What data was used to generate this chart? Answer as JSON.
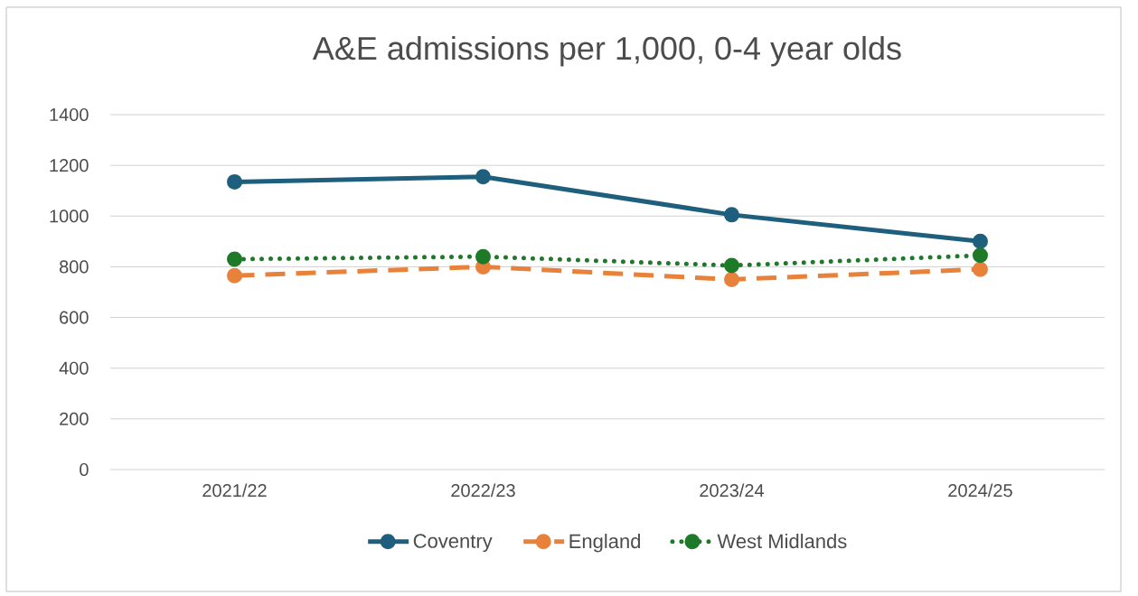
{
  "chart_data": {
    "type": "line",
    "title": "A&E admissions per 1,000, 0-4 year olds",
    "categories": [
      "2021/22",
      "2022/23",
      "2023/24",
      "2024/25"
    ],
    "series": [
      {
        "name": "Coventry",
        "color": "#1f5f7e",
        "values": [
          1135,
          1155,
          1005,
          900
        ],
        "line_style": "solid"
      },
      {
        "name": "England",
        "color": "#e8813a",
        "values": [
          765,
          800,
          750,
          790
        ],
        "line_style": "dashed"
      },
      {
        "name": "West Midlands",
        "color": "#1e7a28",
        "values": [
          830,
          840,
          805,
          845
        ],
        "line_style": "dotted"
      }
    ],
    "ylim": [
      0,
      1400
    ],
    "yticks": [
      0,
      200,
      400,
      600,
      800,
      1000,
      1200,
      1400
    ],
    "grid": "y",
    "legend": "bottom",
    "marker": "circle"
  }
}
